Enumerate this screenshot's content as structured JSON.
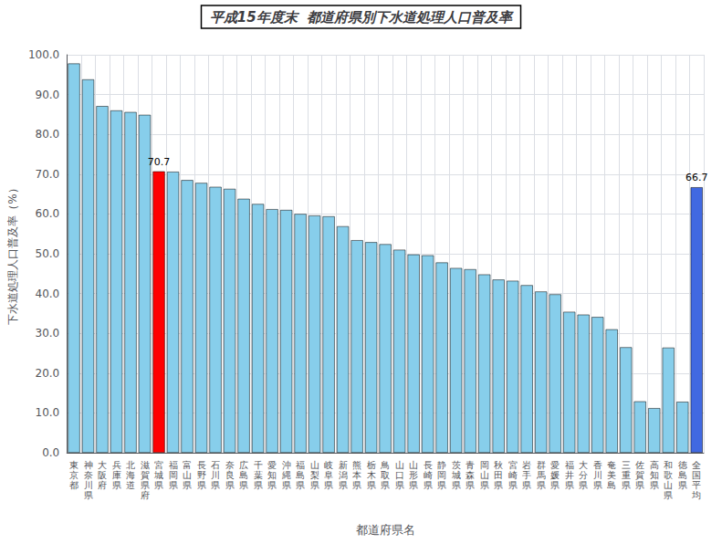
{
  "chart_data": {
    "type": "bar",
    "title": "平成15年度末  都道府県別下水道処理人口普及率",
    "xlabel": "都道府県名",
    "ylabel": "下水道処理人口普及率（%）",
    "categories": [
      "東\n京\n都",
      "神\n奈\n川\n県",
      "大\n阪\n府",
      "兵\n庫\n県",
      "北\n海\n道",
      "滋\n賀\n県\n府",
      "宮\n城\n県",
      "福\n岡\n県",
      "富\n山\n県",
      "長\n野\n県",
      "石\n川\n県",
      "奈\n良\n県",
      "広\n島\n県",
      "千\n葉\n県",
      "愛\n知\n県",
      "沖\n縄\n県",
      "福\n島\n県",
      "山\n梨\n県",
      "岐\n阜\n県",
      "新\n潟\n県",
      "熊\n本\n県",
      "栃\n木\n県",
      "鳥\n取\n県",
      "山\n口\n県",
      "山\n形\n県",
      "長\n崎\n県",
      "静\n岡\n県",
      "茨\n城\n県",
      "青\n森\n県",
      "岡\n山\n県",
      "秋\n田\n県",
      "宮\n崎\n県",
      "岩\n手\n県",
      "群\n馬\n県",
      "愛\n媛\n県",
      "福\n井\n県",
      "大\n分\n県",
      "香\n川\n県",
      "奄\n美\n島",
      "三\n重\n県",
      "佐\n賀\n県",
      "高\n知\n県",
      "和\n歌\n山\n県",
      "徳\n島\n県",
      "全\n国\n平\n均"
    ],
    "values": [
      97.8,
      93.8,
      87.1,
      86.0,
      85.6,
      84.9,
      70.7,
      70.6,
      68.5,
      67.8,
      66.8,
      66.3,
      63.8,
      62.5,
      61.2,
      61.0,
      60.0,
      59.6,
      59.4,
      56.9,
      53.4,
      52.9,
      52.4,
      51.0,
      49.8,
      49.6,
      47.8,
      46.4,
      46.1,
      44.8,
      43.5,
      43.2,
      42.1,
      40.5,
      39.8,
      35.4,
      34.7,
      34.1,
      31.0,
      26.5,
      12.9,
      11.2,
      26.4,
      12.8,
      66.7
    ],
    "colors": [
      "#87CEEB",
      "#87CEEB",
      "#87CEEB",
      "#87CEEB",
      "#87CEEB",
      "#87CEEB",
      "#FF0000",
      "#87CEEB",
      "#87CEEB",
      "#87CEEB",
      "#87CEEB",
      "#87CEEB",
      "#87CEEB",
      "#87CEEB",
      "#87CEEB",
      "#87CEEB",
      "#87CEEB",
      "#87CEEB",
      "#87CEEB",
      "#87CEEB",
      "#87CEEB",
      "#87CEEB",
      "#87CEEB",
      "#87CEEB",
      "#87CEEB",
      "#87CEEB",
      "#87CEEB",
      "#87CEEB",
      "#87CEEB",
      "#87CEEB",
      "#87CEEB",
      "#87CEEB",
      "#87CEEB",
      "#87CEEB",
      "#87CEEB",
      "#87CEEB",
      "#87CEEB",
      "#87CEEB",
      "#87CEEB",
      "#87CEEB",
      "#87CEEB",
      "#87CEEB",
      "#87CEEB",
      "#87CEEB",
      "#4169E1"
    ],
    "annotations": [
      {
        "text": "70.7",
        "category": "宮\n城\n県"
      },
      {
        "text": "66.7",
        "category": "全\n国\n平\n均"
      }
    ],
    "ylim": [
      0.0,
      100.0
    ],
    "yticks": [
      {
        "value": 0.0,
        "label": "0.0"
      },
      {
        "value": 10.0,
        "label": "10.0"
      },
      {
        "value": 20.0,
        "label": "20.0"
      },
      {
        "value": 30.0,
        "label": "30.0"
      },
      {
        "value": 40.0,
        "label": "40.0"
      },
      {
        "value": 50.0,
        "label": "50.0"
      },
      {
        "value": 60.0,
        "label": "60.0"
      },
      {
        "value": 70.0,
        "label": "70.0"
      },
      {
        "value": 80.0,
        "label": "80.0"
      },
      {
        "value": 90.0,
        "label": "90.0"
      },
      {
        "value": 100.0,
        "label": "100.0"
      }
    ],
    "grid": true
  }
}
